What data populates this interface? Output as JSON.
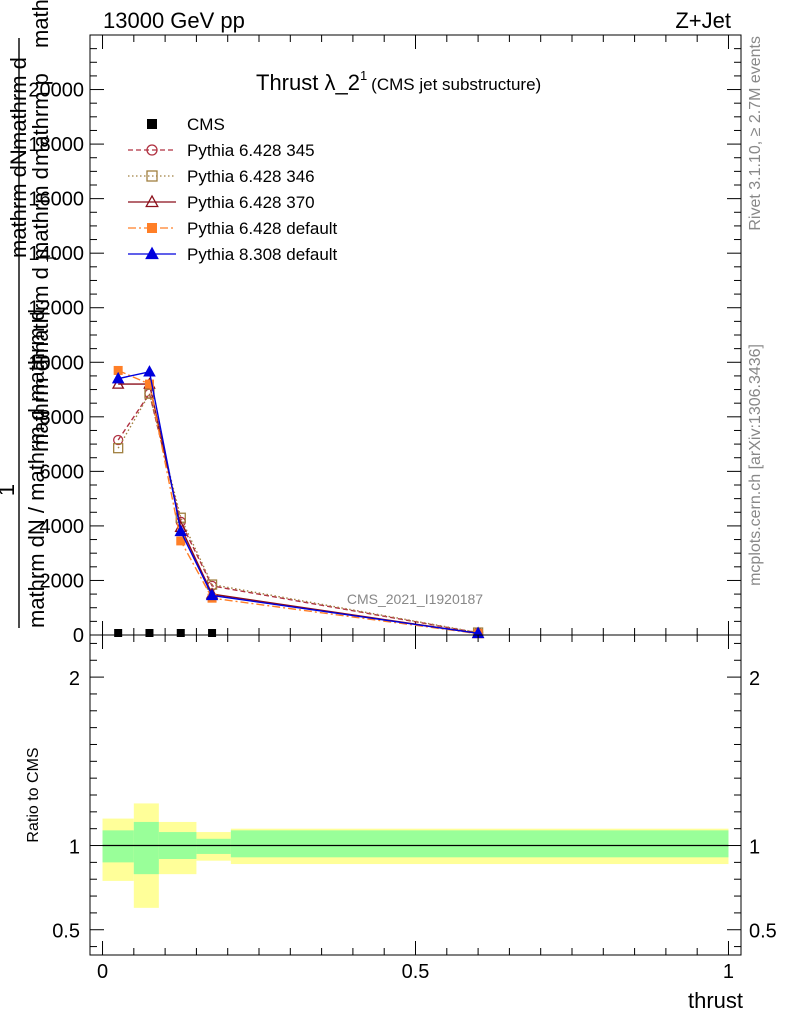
{
  "header": {
    "left": "13000 GeV pp",
    "right": "Z+Jet"
  },
  "side_labels": {
    "rivet": "Rivet 3.1.10, ≥ 2.7M events",
    "mcplots": "mcplots.cern.ch [arXiv:1306.3436]"
  },
  "chart_data": [
    {
      "type": "line",
      "title": "Thrust λ_2",
      "title_sup": "1",
      "subtitle": "(CMS jet substructure)",
      "watermark": "CMS_2021_I1920187",
      "ylabel_numerator": "1",
      "ylabel_denominator": "mathrm dN / mathrm d mathrm d",
      "ylabel_stacked": [
        "mathrm d",
        "mathrm d",
        "mathrm d",
        "mathrm dN",
        "mathrm d",
        "mathrm p",
        "mathrm lambda",
        "T"
      ],
      "xlim": [
        -0.02,
        1.02
      ],
      "ylim": [
        0,
        22000
      ],
      "yticks": [
        {
          "v": 0,
          "label": "0"
        },
        {
          "v": 2000,
          "label": "2000"
        },
        {
          "v": 4000,
          "label": "4000"
        },
        {
          "v": 6000,
          "label": "6000"
        },
        {
          "v": 8000,
          "label": "8000"
        },
        {
          "v": 10000,
          "label": "10000"
        },
        {
          "v": 12000,
          "label": "12000"
        },
        {
          "v": 14000,
          "label": "14000"
        },
        {
          "v": 16000,
          "label": "16000"
        },
        {
          "v": 18000,
          "label": "18000"
        },
        {
          "v": 20000,
          "label": "20000"
        }
      ],
      "series": [
        {
          "name": "CMS",
          "color": "#000000",
          "marker": "square-filled",
          "dash": "",
          "x": [
            0.025,
            0.075,
            0.125,
            0.175
          ],
          "y": [
            0,
            0,
            0,
            0
          ]
        },
        {
          "name": "Pythia 6.428 345",
          "color": "#b03040",
          "marker": "circle-open",
          "dash": "5,3",
          "x": [
            0.025,
            0.075,
            0.125,
            0.175,
            0.6
          ],
          "y": [
            7150,
            8850,
            4150,
            1800,
            80
          ]
        },
        {
          "name": "Pythia 6.428 346",
          "color": "#a08040",
          "marker": "square-open",
          "dash": "1.5,2.5",
          "x": [
            0.025,
            0.075,
            0.125,
            0.175,
            0.6
          ],
          "y": [
            6850,
            8850,
            4300,
            1850,
            90
          ]
        },
        {
          "name": "Pythia 6.428 370",
          "color": "#8b0f1a",
          "marker": "triangle-open",
          "dash": "",
          "x": [
            0.025,
            0.075,
            0.125,
            0.175,
            0.6
          ],
          "y": [
            9200,
            9200,
            3950,
            1500,
            60
          ]
        },
        {
          "name": "Pythia 6.428 default",
          "color": "#ff7f27",
          "marker": "square-filled",
          "dash": "8,3,2,3",
          "x": [
            0.025,
            0.075,
            0.125,
            0.175,
            0.6
          ],
          "y": [
            9700,
            9200,
            3450,
            1350,
            50
          ]
        },
        {
          "name": "Pythia 8.308 default",
          "color": "#0000dd",
          "marker": "triangle-filled",
          "dash": "",
          "x": [
            0.025,
            0.075,
            0.125,
            0.175,
            0.6
          ],
          "y": [
            9400,
            9650,
            3800,
            1450,
            60
          ]
        }
      ]
    },
    {
      "type": "area",
      "ylabel": "Ratio to CMS",
      "xlabel": "thrust",
      "xlim": [
        -0.02,
        1.02
      ],
      "ylim": [
        0.35,
        2.25
      ],
      "yticks": [
        {
          "v": 0.5,
          "label": "0.5"
        },
        {
          "v": 1,
          "label": "1"
        },
        {
          "v": 2,
          "label": "2"
        }
      ],
      "xticks": [
        {
          "v": 0,
          "label": "0"
        },
        {
          "v": 0.5,
          "label": "0.5"
        },
        {
          "v": 1,
          "label": "1"
        }
      ],
      "bands": [
        {
          "x0": 0.0,
          "x1": 0.05,
          "stat_lo": 0.9,
          "stat_hi": 1.09,
          "tot_lo": 0.79,
          "tot_hi": 1.16
        },
        {
          "x0": 0.05,
          "x1": 0.09,
          "stat_lo": 0.83,
          "stat_hi": 1.14,
          "tot_lo": 0.63,
          "tot_hi": 1.25
        },
        {
          "x0": 0.09,
          "x1": 0.15,
          "stat_lo": 0.92,
          "stat_hi": 1.08,
          "tot_lo": 0.83,
          "tot_hi": 1.14
        },
        {
          "x0": 0.15,
          "x1": 0.205,
          "stat_lo": 0.95,
          "stat_hi": 1.04,
          "tot_lo": 0.91,
          "tot_hi": 1.08
        },
        {
          "x0": 0.205,
          "x1": 1.0,
          "stat_lo": 0.93,
          "stat_hi": 1.09,
          "tot_lo": 0.89,
          "tot_hi": 1.1
        }
      ],
      "stat_color": "#99ff99",
      "total_color": "#ffff99"
    }
  ]
}
